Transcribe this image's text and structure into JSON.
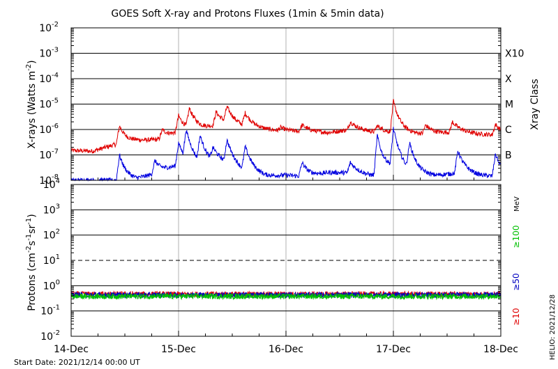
{
  "page": {
    "title": "GOES Soft X-ray and Protons Fluxes   (1min & 5min data)",
    "start_date_label": "Start Date: 2021/12/14 00:00 UT",
    "credit_label": "HELIO: 2021/12/28"
  },
  "chart_data": [
    {
      "type": "line",
      "panel": "xrays",
      "ylabel": "X-rays (Watts m",
      "ylabel_sup": "-2",
      "ylabel_close": ")",
      "y_scale": "log",
      "ylim": [
        1e-08,
        0.01
      ],
      "y_ticks": [
        {
          "base": "10",
          "exp": "-2"
        },
        {
          "base": "10",
          "exp": "-3"
        },
        {
          "base": "10",
          "exp": "-4"
        },
        {
          "base": "10",
          "exp": "-5"
        },
        {
          "base": "10",
          "exp": "-6"
        },
        {
          "base": "10",
          "exp": "-7"
        },
        {
          "base": "10",
          "exp": "-8"
        }
      ],
      "right_axis_label": "Xray Class",
      "class_labels": [
        "X10",
        "X",
        "M",
        "C",
        "B"
      ],
      "class_values": [
        0.001,
        0.0001,
        1e-05,
        1e-06,
        1e-07
      ],
      "series": [
        {
          "color": "#e00000",
          "baseline": [
            [
              0,
              1.5e-07
            ],
            [
              0.2,
              1.4e-07
            ],
            [
              0.4,
              2.5e-07
            ],
            [
              0.6,
              3.5e-07
            ],
            [
              0.8,
              4e-07
            ],
            [
              1.0,
              8e-07
            ],
            [
              1.2,
              1e-06
            ],
            [
              1.4,
              1.6e-06
            ],
            [
              1.6,
              1.2e-06
            ],
            [
              1.8,
              1e-06
            ],
            [
              2.0,
              8.5e-07
            ],
            [
              2.2,
              8e-07
            ],
            [
              2.4,
              7.5e-07
            ],
            [
              2.6,
              1e-06
            ],
            [
              2.8,
              8e-07
            ],
            [
              3.0,
              7e-07
            ],
            [
              3.2,
              6.5e-07
            ],
            [
              3.4,
              7e-07
            ],
            [
              3.6,
              8e-07
            ],
            [
              3.8,
              6.5e-07
            ],
            [
              4.0,
              6e-07
            ]
          ],
          "peaks": [
            [
              0.45,
              1.4e-06
            ],
            [
              0.85,
              1e-06
            ],
            [
              1.0,
              3.5e-06
            ],
            [
              1.1,
              7e-06
            ],
            [
              1.35,
              5e-06
            ],
            [
              1.45,
              8e-06
            ],
            [
              1.62,
              4.5e-06
            ],
            [
              1.95,
              1.2e-06
            ],
            [
              2.15,
              1.5e-06
            ],
            [
              2.6,
              2e-06
            ],
            [
              2.85,
              1.4e-06
            ],
            [
              3.0,
              1.3e-05
            ],
            [
              3.3,
              1.5e-06
            ],
            [
              3.55,
              2e-06
            ],
            [
              3.95,
              1.6e-06
            ]
          ]
        },
        {
          "color": "#0000e0",
          "baseline": [
            [
              0,
              1e-08
            ],
            [
              0.2,
              1e-08
            ],
            [
              0.4,
              1e-08
            ],
            [
              0.6,
              1e-08
            ],
            [
              0.8,
              2e-08
            ],
            [
              1.0,
              4e-08
            ],
            [
              1.2,
              3e-08
            ],
            [
              1.4,
              4e-08
            ],
            [
              1.6,
              2e-08
            ],
            [
              1.8,
              1.4e-08
            ],
            [
              2.0,
              1.6e-08
            ],
            [
              2.2,
              1.4e-08
            ],
            [
              2.4,
              2e-08
            ],
            [
              2.6,
              2e-08
            ],
            [
              2.8,
              1.5e-08
            ],
            [
              3.0,
              3e-08
            ],
            [
              3.2,
              1.4e-08
            ],
            [
              3.4,
              1.5e-08
            ],
            [
              3.6,
              2e-08
            ],
            [
              3.8,
              1.5e-08
            ],
            [
              4.0,
              1.4e-08
            ]
          ],
          "peaks": [
            [
              0.45,
              1e-07
            ],
            [
              0.78,
              6e-08
            ],
            [
              1.0,
              3e-07
            ],
            [
              1.07,
              1e-06
            ],
            [
              1.2,
              6e-07
            ],
            [
              1.32,
              2e-07
            ],
            [
              1.45,
              4e-07
            ],
            [
              1.62,
              2.2e-07
            ],
            [
              2.15,
              5e-08
            ],
            [
              2.6,
              5e-08
            ],
            [
              2.85,
              6e-07
            ],
            [
              3.0,
              1.1e-06
            ],
            [
              3.15,
              3e-07
            ],
            [
              3.6,
              1.5e-07
            ],
            [
              3.95,
              1.1e-07
            ]
          ]
        }
      ]
    },
    {
      "type": "line",
      "panel": "protons",
      "ylabel": "Protons (cm",
      "ylabel_parts": [
        "-2",
        "s",
        "-1",
        "sr",
        "-1"
      ],
      "ylabel_close": ")",
      "y_scale": "log",
      "ylim": [
        0.01,
        10000
      ],
      "y_ticks": [
        {
          "base": "10",
          "exp": "4"
        },
        {
          "base": "10",
          "exp": "3"
        },
        {
          "base": "10",
          "exp": "2"
        },
        {
          "base": "10",
          "exp": "1"
        },
        {
          "base": "10",
          "exp": "0"
        },
        {
          "base": "10",
          "exp": "-1"
        },
        {
          "base": "10",
          "exp": "-2"
        }
      ],
      "threshold_value": 10,
      "energy_unit_label": "MeV",
      "series": [
        {
          "name": "≥100",
          "color": "#00c000",
          "level": 0.38
        },
        {
          "name": "≥50",
          "color": "#0000c0",
          "level": 0.43
        },
        {
          "name": "≥10",
          "color": "#e00000",
          "level": 0.46
        }
      ]
    }
  ],
  "x_axis": {
    "ticks": [
      "14-Dec",
      "15-Dec",
      "16-Dec",
      "17-Dec",
      "18-Dec"
    ],
    "xlim": [
      0,
      4
    ]
  }
}
